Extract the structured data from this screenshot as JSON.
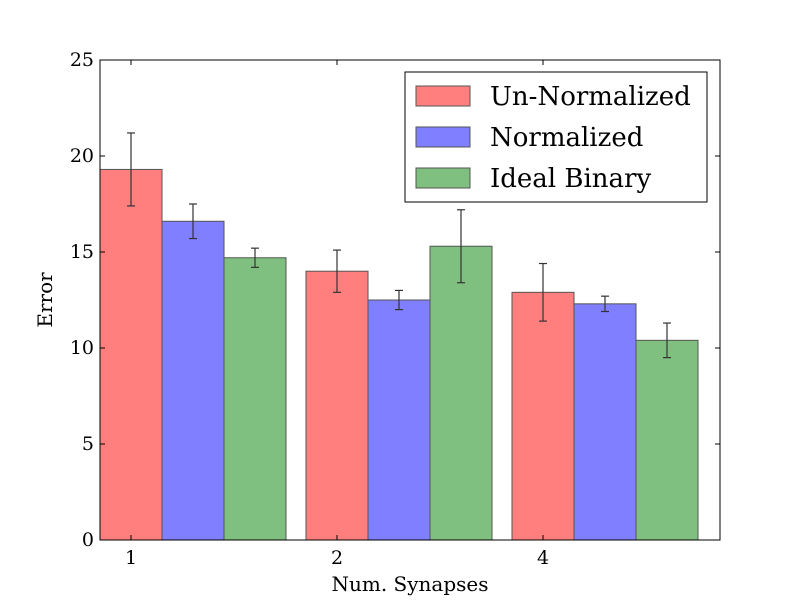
{
  "chart_data": {
    "type": "bar",
    "title": "",
    "xlabel": "Num. Synapses",
    "ylabel": "Error",
    "categories": [
      "1",
      "2",
      "4"
    ],
    "ylim": [
      0,
      25
    ],
    "yticks": [
      0,
      5,
      10,
      15,
      20,
      25
    ],
    "grid": false,
    "legend_position": "top-right",
    "series": [
      {
        "name": "Un-Normalized",
        "color": "#ff7f7f",
        "values": [
          19.3,
          14.0,
          12.9
        ],
        "errors": [
          1.9,
          1.1,
          1.5
        ]
      },
      {
        "name": "Normalized",
        "color": "#7f7fff",
        "values": [
          16.6,
          12.5,
          12.3
        ],
        "errors": [
          0.9,
          0.5,
          0.4
        ]
      },
      {
        "name": "Ideal Binary",
        "color": "#7fbf7f",
        "values": [
          14.7,
          15.3,
          10.4
        ],
        "errors": [
          0.5,
          1.9,
          0.9
        ]
      }
    ]
  }
}
